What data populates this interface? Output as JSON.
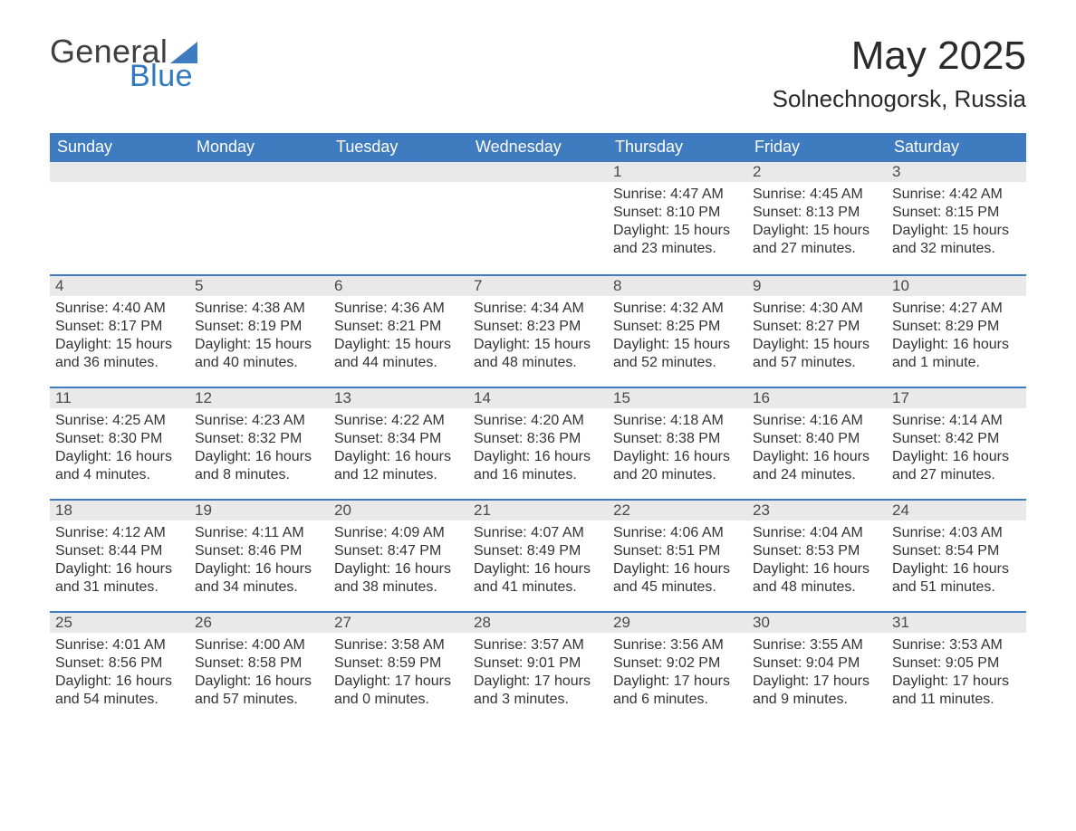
{
  "logo": {
    "text_general": "General",
    "text_blue": "Blue",
    "tri_color": "#3f7bbf"
  },
  "title": {
    "month_year": "May 2025",
    "location": "Solnechnogorsk, Russia"
  },
  "colors": {
    "header_bg": "#3f7bbf",
    "header_text": "#ffffff",
    "day_band_bg": "#e9e9e9",
    "week_divider": "#3f7bbf",
    "body_text": "#333333",
    "title_text": "#2b2b2b"
  },
  "weekdays": [
    "Sunday",
    "Monday",
    "Tuesday",
    "Wednesday",
    "Thursday",
    "Friday",
    "Saturday"
  ],
  "month": {
    "start_weekday_index": 4,
    "days": [
      {
        "n": 1,
        "sunrise": "4:47 AM",
        "sunset": "8:10 PM",
        "daylight": "15 hours and 23 minutes."
      },
      {
        "n": 2,
        "sunrise": "4:45 AM",
        "sunset": "8:13 PM",
        "daylight": "15 hours and 27 minutes."
      },
      {
        "n": 3,
        "sunrise": "4:42 AM",
        "sunset": "8:15 PM",
        "daylight": "15 hours and 32 minutes."
      },
      {
        "n": 4,
        "sunrise": "4:40 AM",
        "sunset": "8:17 PM",
        "daylight": "15 hours and 36 minutes."
      },
      {
        "n": 5,
        "sunrise": "4:38 AM",
        "sunset": "8:19 PM",
        "daylight": "15 hours and 40 minutes."
      },
      {
        "n": 6,
        "sunrise": "4:36 AM",
        "sunset": "8:21 PM",
        "daylight": "15 hours and 44 minutes."
      },
      {
        "n": 7,
        "sunrise": "4:34 AM",
        "sunset": "8:23 PM",
        "daylight": "15 hours and 48 minutes."
      },
      {
        "n": 8,
        "sunrise": "4:32 AM",
        "sunset": "8:25 PM",
        "daylight": "15 hours and 52 minutes."
      },
      {
        "n": 9,
        "sunrise": "4:30 AM",
        "sunset": "8:27 PM",
        "daylight": "15 hours and 57 minutes."
      },
      {
        "n": 10,
        "sunrise": "4:27 AM",
        "sunset": "8:29 PM",
        "daylight": "16 hours and 1 minute."
      },
      {
        "n": 11,
        "sunrise": "4:25 AM",
        "sunset": "8:30 PM",
        "daylight": "16 hours and 4 minutes."
      },
      {
        "n": 12,
        "sunrise": "4:23 AM",
        "sunset": "8:32 PM",
        "daylight": "16 hours and 8 minutes."
      },
      {
        "n": 13,
        "sunrise": "4:22 AM",
        "sunset": "8:34 PM",
        "daylight": "16 hours and 12 minutes."
      },
      {
        "n": 14,
        "sunrise": "4:20 AM",
        "sunset": "8:36 PM",
        "daylight": "16 hours and 16 minutes."
      },
      {
        "n": 15,
        "sunrise": "4:18 AM",
        "sunset": "8:38 PM",
        "daylight": "16 hours and 20 minutes."
      },
      {
        "n": 16,
        "sunrise": "4:16 AM",
        "sunset": "8:40 PM",
        "daylight": "16 hours and 24 minutes."
      },
      {
        "n": 17,
        "sunrise": "4:14 AM",
        "sunset": "8:42 PM",
        "daylight": "16 hours and 27 minutes."
      },
      {
        "n": 18,
        "sunrise": "4:12 AM",
        "sunset": "8:44 PM",
        "daylight": "16 hours and 31 minutes."
      },
      {
        "n": 19,
        "sunrise": "4:11 AM",
        "sunset": "8:46 PM",
        "daylight": "16 hours and 34 minutes."
      },
      {
        "n": 20,
        "sunrise": "4:09 AM",
        "sunset": "8:47 PM",
        "daylight": "16 hours and 38 minutes."
      },
      {
        "n": 21,
        "sunrise": "4:07 AM",
        "sunset": "8:49 PM",
        "daylight": "16 hours and 41 minutes."
      },
      {
        "n": 22,
        "sunrise": "4:06 AM",
        "sunset": "8:51 PM",
        "daylight": "16 hours and 45 minutes."
      },
      {
        "n": 23,
        "sunrise": "4:04 AM",
        "sunset": "8:53 PM",
        "daylight": "16 hours and 48 minutes."
      },
      {
        "n": 24,
        "sunrise": "4:03 AM",
        "sunset": "8:54 PM",
        "daylight": "16 hours and 51 minutes."
      },
      {
        "n": 25,
        "sunrise": "4:01 AM",
        "sunset": "8:56 PM",
        "daylight": "16 hours and 54 minutes."
      },
      {
        "n": 26,
        "sunrise": "4:00 AM",
        "sunset": "8:58 PM",
        "daylight": "16 hours and 57 minutes."
      },
      {
        "n": 27,
        "sunrise": "3:58 AM",
        "sunset": "8:59 PM",
        "daylight": "17 hours and 0 minutes."
      },
      {
        "n": 28,
        "sunrise": "3:57 AM",
        "sunset": "9:01 PM",
        "daylight": "17 hours and 3 minutes."
      },
      {
        "n": 29,
        "sunrise": "3:56 AM",
        "sunset": "9:02 PM",
        "daylight": "17 hours and 6 minutes."
      },
      {
        "n": 30,
        "sunrise": "3:55 AM",
        "sunset": "9:04 PM",
        "daylight": "17 hours and 9 minutes."
      },
      {
        "n": 31,
        "sunrise": "3:53 AM",
        "sunset": "9:05 PM",
        "daylight": "17 hours and 11 minutes."
      }
    ]
  },
  "labels": {
    "sunrise_prefix": "Sunrise: ",
    "sunset_prefix": "Sunset: ",
    "daylight_prefix": "Daylight: "
  },
  "typography": {
    "title_fontsize": 44,
    "subtitle_fontsize": 26,
    "weekday_fontsize": 18,
    "daynum_fontsize": 17,
    "body_fontsize": 16
  }
}
